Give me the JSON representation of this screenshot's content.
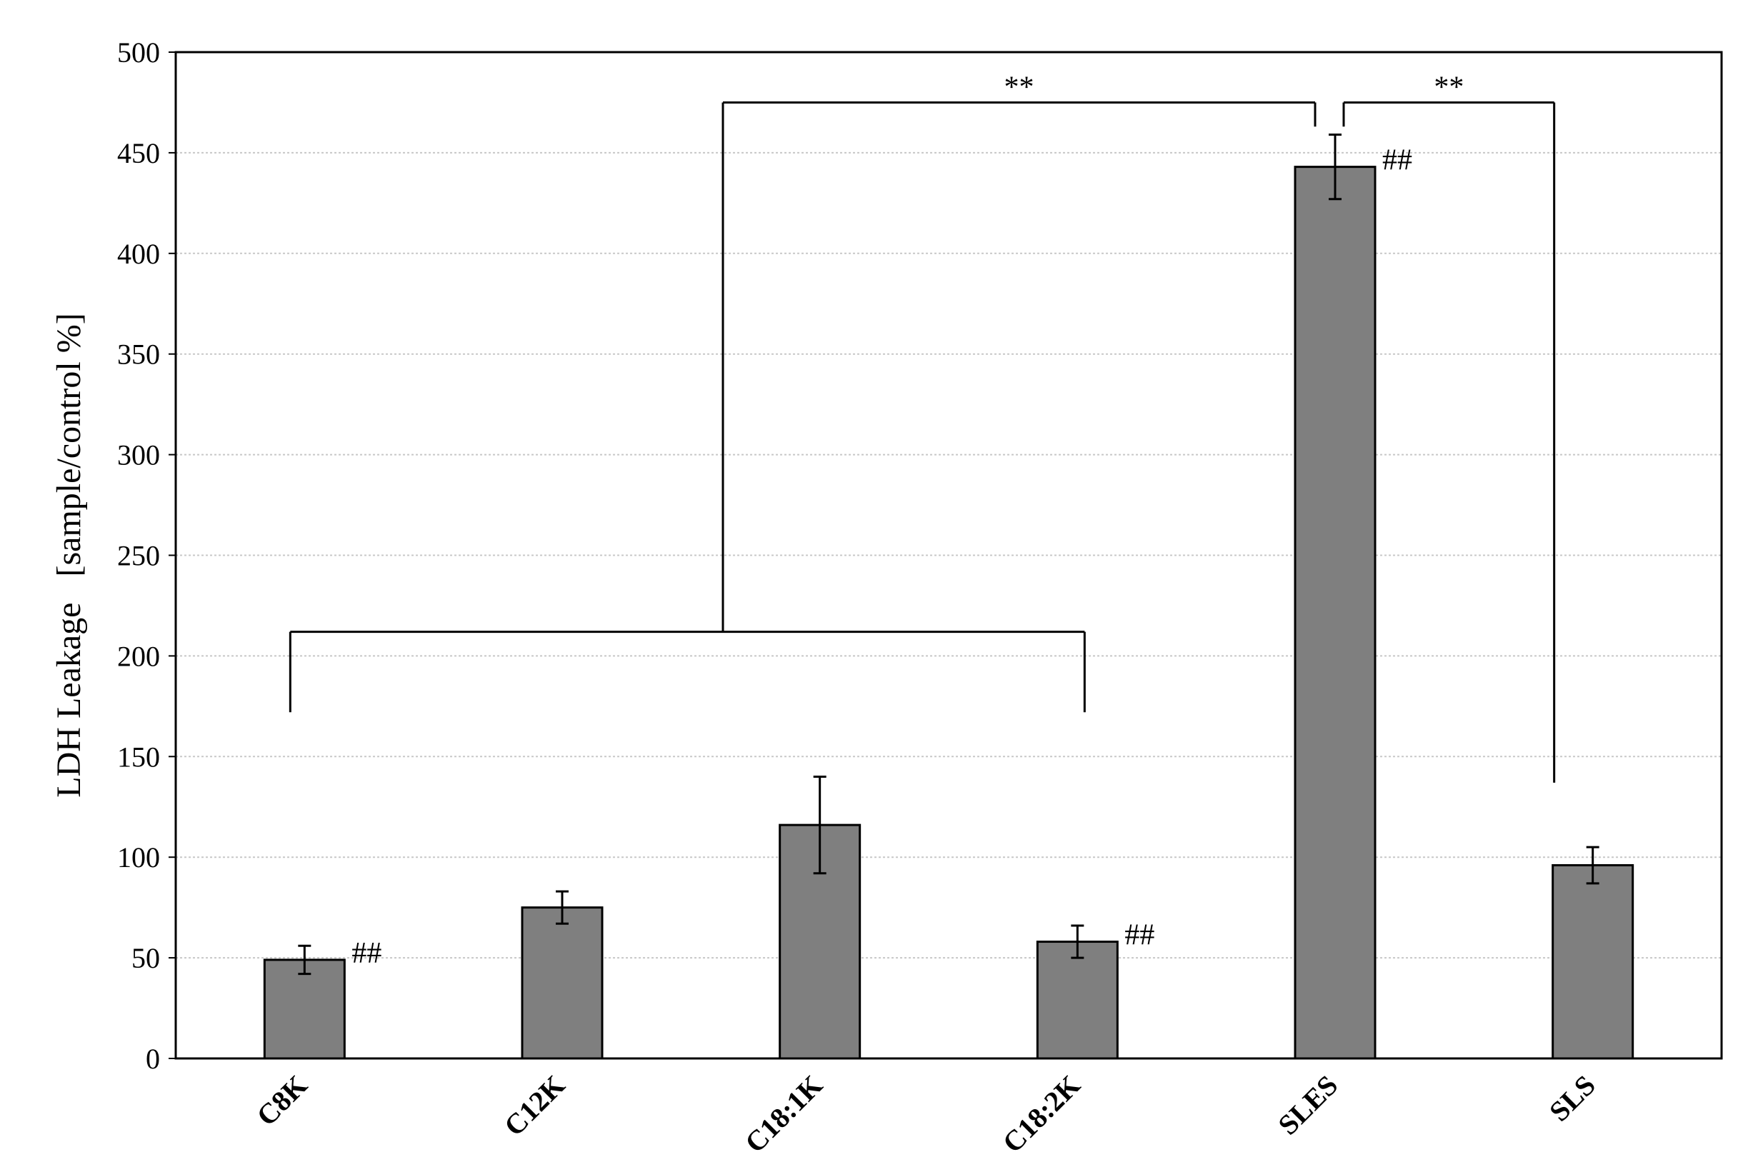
{
  "chart_data": {
    "type": "bar",
    "title": "",
    "xlabel": "",
    "ylabel": "LDH Leakage   [sample/control %]",
    "ylim": [
      0,
      500
    ],
    "yticks": [
      0,
      50,
      100,
      150,
      200,
      250,
      300,
      350,
      400,
      450,
      500
    ],
    "grid": "horizontal dotted",
    "categories": [
      "C8K",
      "C12K",
      "C18:1K",
      "C18:2K",
      "SLES",
      "SLS"
    ],
    "values": [
      49,
      75,
      116,
      58,
      443,
      96
    ],
    "errors": [
      7,
      8,
      24,
      8,
      16,
      9
    ],
    "bar_color": "#7f7f7f",
    "category_marks": [
      "##",
      "",
      "",
      "##",
      "##",
      ""
    ],
    "significance": [
      {
        "label": "**",
        "from": [
          "C8K",
          "C12K",
          "C18:1K",
          "C18:2K"
        ],
        "to": "SLES"
      },
      {
        "label": "**",
        "from": [
          "SLES"
        ],
        "to": "SLS"
      }
    ]
  }
}
